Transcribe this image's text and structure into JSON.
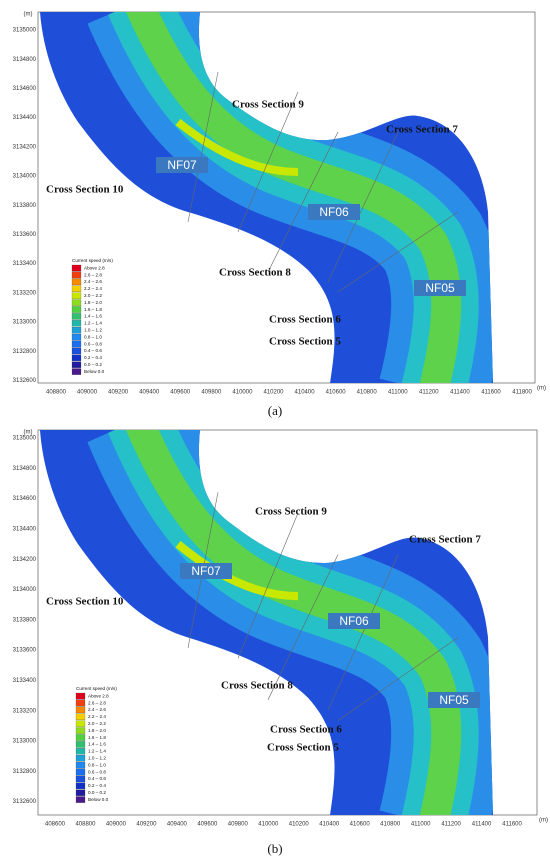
{
  "panels": [
    {
      "caption": "(a)",
      "y_unit": "(m)",
      "x_unit": "(m)",
      "y_ticks": [
        3135000,
        3134800,
        3134600,
        3134400,
        3134200,
        3134000,
        3133800,
        3133600,
        3133400,
        3133200,
        3133000,
        3132800,
        3132600
      ],
      "x_ticks": [
        408800,
        409000,
        409200,
        409400,
        409600,
        409800,
        410000,
        410200,
        410400,
        410600,
        410800,
        411000,
        411200,
        411400,
        411600,
        411800
      ],
      "cross_sections": [
        "Cross Section 9",
        "Cross Section 7",
        "Cross Section 10",
        "Cross Section 8",
        "Cross Section 6",
        "Cross Section 5"
      ],
      "zones": [
        "NF07",
        "NF06",
        "NF05"
      ],
      "legend": {
        "title": "Current speed (m/s)",
        "entries": [
          "Above 2.8",
          "2.6 – 2.8",
          "2.4 – 2.6",
          "2.2 – 2.4",
          "2.0 – 2.2",
          "1.8 – 2.0",
          "1.6 – 1.8",
          "1.4 – 1.6",
          "1.2 – 1.4",
          "1.0 – 1.2",
          "0.8 – 1.0",
          "0.6 – 0.8",
          "0.4 – 0.6",
          "0.2 – 0.4",
          "0.0 – 0.2",
          "Below 0.0"
        ]
      }
    },
    {
      "caption": "(b)",
      "y_unit": "(m)",
      "x_unit": "(m)",
      "y_ticks": [
        3135000,
        3134800,
        3134600,
        3134400,
        3134200,
        3134000,
        3133800,
        3133600,
        3133400,
        3133200,
        3133000,
        3132800,
        3132600
      ],
      "x_ticks": [
        408600,
        408800,
        409000,
        409200,
        409400,
        409600,
        409800,
        410000,
        410200,
        410400,
        410600,
        410800,
        411000,
        411200,
        411400,
        411600
      ],
      "cross_sections": [
        "Cross Section 9",
        "Cross Section 7",
        "Cross Section 10",
        "Cross Section 8",
        "Cross Section 6",
        "Cross Section 5"
      ],
      "zones": [
        "NF07",
        "NF06",
        "NF05"
      ],
      "legend": {
        "title": "Current speed (m/s)",
        "entries": [
          "Above 2.8",
          "2.6 – 2.8",
          "2.4 – 2.6",
          "2.2 – 2.4",
          "2.0 – 2.2",
          "1.8 – 2.0",
          "1.6 – 1.8",
          "1.4 – 1.6",
          "1.2 – 1.4",
          "1.0 – 1.2",
          "0.8 – 1.0",
          "0.6 – 0.8",
          "0.4 – 0.6",
          "0.2 – 0.4",
          "0.0 – 0.2",
          "Below 0.0"
        ]
      }
    }
  ]
}
